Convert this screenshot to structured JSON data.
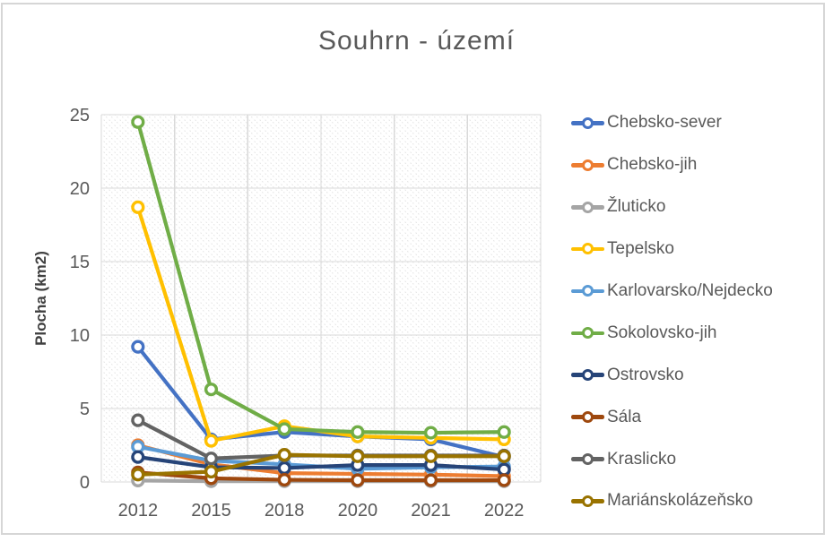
{
  "chart_data": {
    "type": "line",
    "title": "Souhrn - území",
    "xlabel": "",
    "ylabel": "Plocha (km2)",
    "categories": [
      "2012",
      "2015",
      "2018",
      "2020",
      "2021",
      "2022"
    ],
    "ylim": [
      0,
      25
    ],
    "yticks": [
      0,
      5,
      10,
      15,
      20,
      25
    ],
    "grid": true,
    "legend_position": "right",
    "marker_style": "open-circle",
    "plot_area_fill": "diagonal-dotted-hatch",
    "gridline_color": "#d9d9d9",
    "hatch_color": "#e3e3e3",
    "axis_text_color": "#595959",
    "title_color": "#595959",
    "series": [
      {
        "name": "Chebsko-sever",
        "color": "#4472C4",
        "values": [
          9.2,
          2.9,
          3.4,
          3.1,
          2.9,
          1.7
        ]
      },
      {
        "name": "Chebsko-jih",
        "color": "#ED7D31",
        "values": [
          2.5,
          1.2,
          0.6,
          0.55,
          0.5,
          0.4
        ]
      },
      {
        "name": "Žluticko",
        "color": "#A5A5A5",
        "values": [
          0.1,
          0.05,
          0.05,
          0.05,
          0.05,
          0.05
        ]
      },
      {
        "name": "Tepelsko",
        "color": "#FFC000",
        "values": [
          18.7,
          2.8,
          3.8,
          3.1,
          3.0,
          2.9
        ]
      },
      {
        "name": "Karlovarsko/Nejdecko",
        "color": "#5B9BD5",
        "values": [
          2.4,
          1.45,
          1.2,
          0.9,
          1.0,
          1.05
        ]
      },
      {
        "name": "Sokolovsko-jih",
        "color": "#70AD47",
        "values": [
          24.5,
          6.3,
          3.6,
          3.4,
          3.35,
          3.4
        ]
      },
      {
        "name": "Ostrovsko",
        "color": "#264478",
        "values": [
          1.7,
          1.0,
          0.95,
          1.15,
          1.15,
          0.85
        ]
      },
      {
        "name": "Sála",
        "color": "#9E480E",
        "values": [
          0.65,
          0.25,
          0.15,
          0.12,
          0.12,
          0.12
        ]
      },
      {
        "name": "Kraslicko",
        "color": "#636363",
        "values": [
          4.2,
          1.6,
          1.8,
          1.8,
          1.8,
          1.8
        ]
      },
      {
        "name": "Mariánskolázeňsko",
        "color": "#997300",
        "values": [
          0.5,
          0.7,
          1.85,
          1.75,
          1.75,
          1.75
        ]
      }
    ]
  }
}
